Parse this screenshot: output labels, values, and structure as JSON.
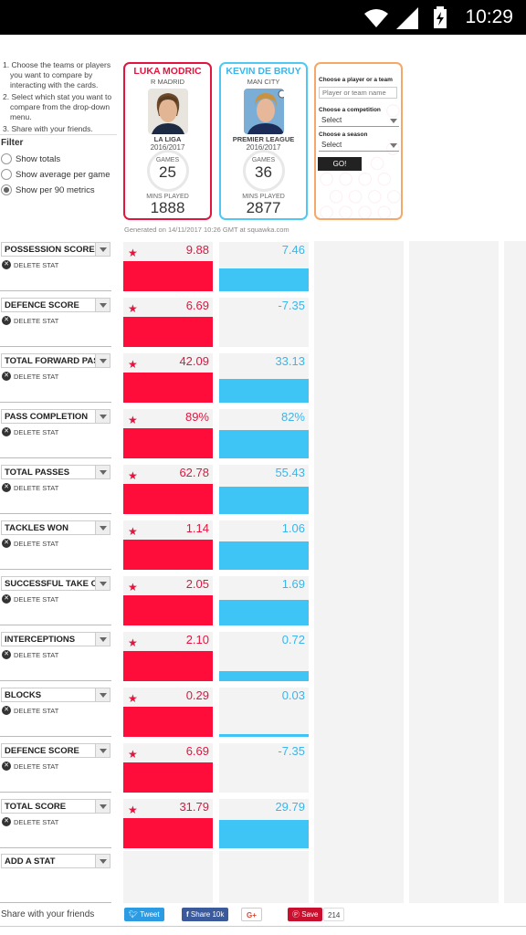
{
  "status_bar": {
    "time": "10:29"
  },
  "instructions": [
    "1. Choose the teams or players you want to compare by interacting with the cards.",
    "2. Select which stat you want to compare from the drop-down menu.",
    "3. Share with your friends."
  ],
  "filter": {
    "title": "Filter",
    "options": [
      {
        "label": "Show totals",
        "checked": false
      },
      {
        "label": "Show average per game",
        "checked": false
      },
      {
        "label": "Show per 90 metrics",
        "checked": true
      }
    ]
  },
  "player1": {
    "name": "LUKA MODRIC",
    "team": "R MADRID",
    "league": "LA LIGA",
    "season": "2016/2017",
    "games_label": "GAMES",
    "games": "25",
    "mins_label": "MINS PLAYED",
    "mins": "1888"
  },
  "player2": {
    "name": "KEVIN DE BRUY",
    "team": "MAN CITY",
    "league": "PREMIER LEAGUE",
    "season": "2016/2017",
    "games_label": "GAMES",
    "games": "36",
    "mins_label": "MINS PLAYED",
    "mins": "2877"
  },
  "chooser": {
    "player_label": "Choose a player or a team",
    "player_placeholder": "Player or team name",
    "competition_label": "Choose a competition",
    "competition_value": "Select",
    "season_label": "Choose a season",
    "season_value": "Select",
    "go_label": "GO!"
  },
  "generated": "Generated on 14/11/2017 10:26 GMT at squawka.com",
  "delete_label": "DELETE STAT",
  "stats": [
    {
      "name": "POSSESSION SCORE",
      "p1": "9.88",
      "p2": "7.46",
      "p1_fill": 0.62,
      "p2_fill": 0.46,
      "p1_star": true
    },
    {
      "name": "DEFENCE SCORE",
      "p1": "6.69",
      "p2": "-7.35",
      "p1_fill": 0.62,
      "p2_fill": 0.0,
      "p1_star": true
    },
    {
      "name": "TOTAL FORWARD PASSES",
      "p1": "42.09",
      "p2": "33.13",
      "p1_fill": 0.62,
      "p2_fill": 0.49,
      "p1_star": true
    },
    {
      "name": "PASS COMPLETION",
      "p1": "89%",
      "p2": "82%",
      "p1_fill": 0.62,
      "p2_fill": 0.57,
      "p1_star": true
    },
    {
      "name": "TOTAL PASSES",
      "p1": "62.78",
      "p2": "55.43",
      "p1_fill": 0.62,
      "p2_fill": 0.55,
      "p1_star": true
    },
    {
      "name": "TACKLES WON",
      "p1": "1.14",
      "p2": "1.06",
      "p1_fill": 0.62,
      "p2_fill": 0.58,
      "p1_star": true
    },
    {
      "name": "SUCCESSFUL TAKE ONS",
      "p1": "2.05",
      "p2": "1.69",
      "p1_fill": 0.62,
      "p2_fill": 0.51,
      "p1_star": true
    },
    {
      "name": "INTERCEPTIONS",
      "p1": "2.10",
      "p2": "0.72",
      "p1_fill": 0.62,
      "p2_fill": 0.21,
      "p1_star": true
    },
    {
      "name": "BLOCKS",
      "p1": "0.29",
      "p2": "0.03",
      "p1_fill": 0.62,
      "p2_fill": 0.06,
      "p1_star": true
    },
    {
      "name": "DEFENCE SCORE",
      "p1": "6.69",
      "p2": "-7.35",
      "p1_fill": 0.62,
      "p2_fill": 0.0,
      "p1_star": true
    },
    {
      "name": "TOTAL SCORE",
      "p1": "31.79",
      "p2": "29.79",
      "p1_fill": 0.62,
      "p2_fill": 0.58,
      "p1_star": true
    }
  ],
  "add_stat_label": "ADD A STAT",
  "share": {
    "label": "Share with your friends",
    "tweet": "Tweet",
    "facebook": "Share 10k",
    "gplus": "G+",
    "pinterest": "Save",
    "pin_count": "214"
  },
  "colors": {
    "player1": "#fe0c3a",
    "player2": "#3ec5f5",
    "player3": "#f4a86a"
  }
}
